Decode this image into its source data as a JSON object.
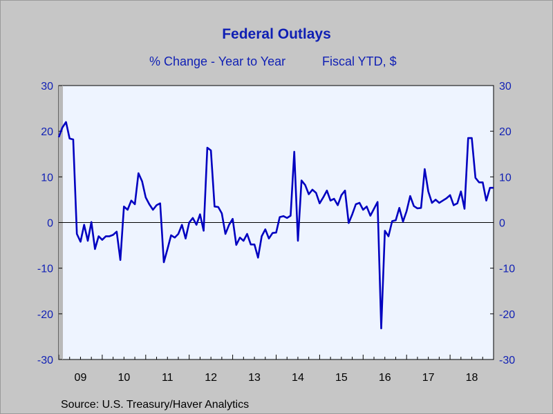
{
  "chart_data": {
    "type": "line",
    "title": "Federal Outlays",
    "subtitle_left": "% Change - Year to Year",
    "subtitle_right": "Fiscal YTD, $",
    "source": "Source:  U.S. Treasury/Haver Analytics",
    "ylim": [
      -30,
      30
    ],
    "yticks": [
      -30,
      -20,
      -10,
      0,
      10,
      20,
      30
    ],
    "xlim": [
      2009.0,
      2019.0
    ],
    "xtick_labels": [
      "09",
      "10",
      "11",
      "12",
      "13",
      "14",
      "15",
      "16",
      "17",
      "18"
    ],
    "line_color": "#0000c0",
    "plot_bg": "#eef4ff",
    "grid": false,
    "zero_line": true,
    "series": [
      {
        "x": [
          2009.0,
          2009.083,
          2009.167,
          2009.25,
          2009.333,
          2009.417,
          2009.5,
          2009.583,
          2009.667,
          2009.75,
          2009.833,
          2009.917,
          2010.0,
          2010.083,
          2010.167,
          2010.25,
          2010.333,
          2010.417,
          2010.5,
          2010.583,
          2010.667,
          2010.75,
          2010.833,
          2010.917,
          2011.0,
          2011.083,
          2011.167,
          2011.25,
          2011.333,
          2011.417,
          2011.5,
          2011.583,
          2011.667,
          2011.75,
          2011.833,
          2011.917,
          2012.0,
          2012.083,
          2012.167,
          2012.25,
          2012.333,
          2012.417,
          2012.5,
          2012.583,
          2012.667,
          2012.75,
          2012.833,
          2012.917,
          2013.0,
          2013.083,
          2013.167,
          2013.25,
          2013.333,
          2013.417,
          2013.5,
          2013.583,
          2013.667,
          2013.75,
          2013.833,
          2013.917,
          2014.0,
          2014.083,
          2014.167,
          2014.25,
          2014.333,
          2014.417,
          2014.5,
          2014.583,
          2014.667,
          2014.75,
          2014.833,
          2014.917,
          2015.0,
          2015.083,
          2015.167,
          2015.25,
          2015.333,
          2015.417,
          2015.5,
          2015.583,
          2015.667,
          2015.75,
          2015.833,
          2015.917,
          2016.0,
          2016.083,
          2016.167,
          2016.25,
          2016.333,
          2016.417,
          2016.5,
          2016.583,
          2016.667,
          2016.75,
          2016.833,
          2016.917,
          2017.0,
          2017.083,
          2017.167,
          2017.25,
          2017.333,
          2017.417,
          2017.5,
          2017.583,
          2017.667,
          2017.75,
          2017.833,
          2017.917,
          2018.0,
          2018.083,
          2018.167,
          2018.25,
          2018.333,
          2018.417,
          2018.5,
          2018.583,
          2018.667,
          2018.75,
          2018.833,
          2018.917,
          2019.0
        ],
        "y": [
          18.7,
          20.8,
          22.0,
          18.4,
          18.2,
          -2.5,
          -4.2,
          -0.5,
          -4.0,
          0.1,
          -5.8,
          -3.0,
          -3.8,
          -3.0,
          -3.0,
          -2.7,
          -2.0,
          -8.2,
          3.5,
          2.8,
          4.8,
          4.0,
          10.8,
          9.0,
          5.5,
          4.0,
          2.8,
          3.8,
          4.2,
          -8.7,
          -5.8,
          -2.8,
          -3.3,
          -2.5,
          -0.5,
          -3.5,
          0.0,
          1.0,
          -0.5,
          1.8,
          -1.8,
          16.4,
          15.8,
          3.5,
          3.4,
          2.0,
          -2.5,
          -0.5,
          0.8,
          -4.9,
          -3.3,
          -4.0,
          -2.5,
          -4.8,
          -4.8,
          -7.7,
          -3.0,
          -1.5,
          -3.5,
          -2.3,
          -2.2,
          1.2,
          1.4,
          1.0,
          1.5,
          15.5,
          -4.0,
          9.2,
          8.2,
          6.2,
          7.2,
          6.5,
          4.2,
          5.5,
          7.0,
          4.8,
          5.2,
          3.8,
          6.0,
          7.0,
          -0.1,
          1.8,
          4.0,
          4.3,
          2.8,
          3.5,
          1.5,
          3.0,
          4.5,
          -23.2,
          -1.8,
          -3.0,
          0.3,
          0.5,
          3.2,
          0.2,
          2.5,
          5.8,
          3.6,
          3.1,
          3.2,
          11.7,
          6.8,
          4.3,
          5.0,
          4.3,
          4.8,
          5.3,
          6.0,
          3.8,
          4.2,
          6.8,
          3.0,
          18.5,
          18.5,
          9.8,
          8.8,
          8.8,
          4.8,
          7.6,
          7.6
        ]
      }
    ]
  }
}
